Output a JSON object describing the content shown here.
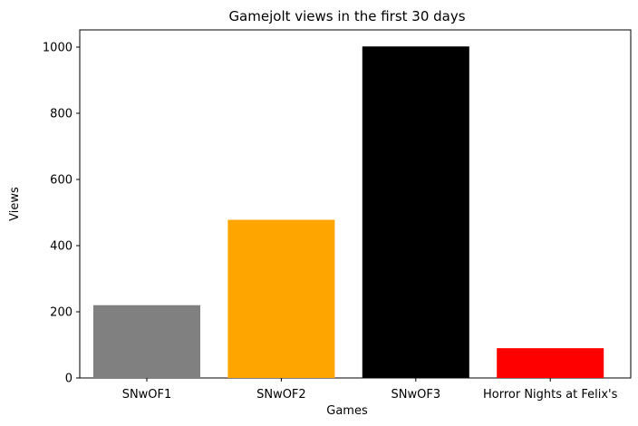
{
  "chart_data": {
    "type": "bar",
    "title": "Gamejolt views in the first 30 days",
    "xlabel": "Games",
    "ylabel": "Views",
    "categories": [
      "SNwOF1",
      "SNwOF2",
      "SNwOF3",
      "Horror Nights at Felix's"
    ],
    "values": [
      220,
      478,
      1002,
      90
    ],
    "colors": [
      "#808080",
      "#ffa500",
      "#000000",
      "#ff0000"
    ],
    "yticks": [
      0,
      200,
      400,
      600,
      800,
      1000
    ],
    "ylim": [
      0,
      1052
    ],
    "grid": false,
    "legend": "none"
  }
}
